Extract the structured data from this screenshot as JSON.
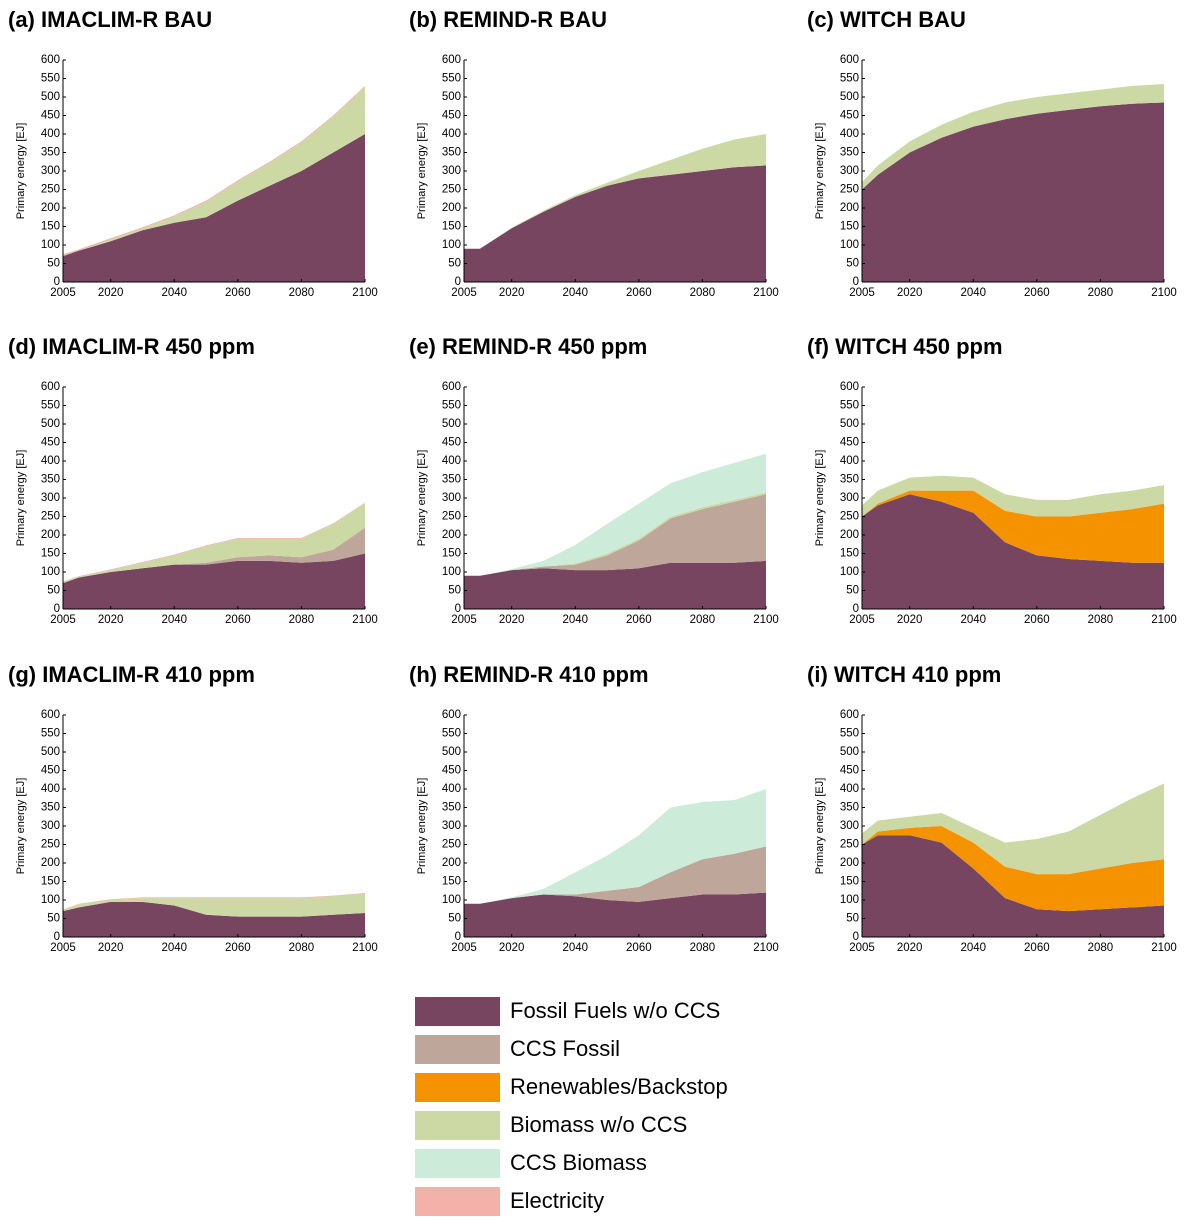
{
  "chart_data": [
    {
      "type": "stacked_area",
      "title": "(a) IMACLIM-R BAU",
      "y_label": "Primary energy [EJ]",
      "x": [
        2005,
        2010,
        2020,
        2030,
        2040,
        2050,
        2060,
        2070,
        2080,
        2090,
        2100
      ],
      "series": [
        {
          "name": "Fossil Fuels w/o CCS",
          "color": "#774560",
          "values": [
            70,
            85,
            110,
            140,
            160,
            175,
            220,
            260,
            300,
            350,
            400
          ]
        },
        {
          "name": "Biomass w/o CCS",
          "color": "#ccd9a5",
          "values": [
            2,
            0,
            5,
            5,
            17,
            42,
            52,
            62,
            77,
            97,
            127
          ]
        },
        {
          "name": "Electricity",
          "color": "#f4b1a9",
          "values": [
            3,
            3,
            3,
            3,
            3,
            3,
            3,
            3,
            3,
            3,
            3
          ]
        }
      ],
      "xlim": [
        2005,
        2100
      ],
      "xticks": [
        2005,
        2020,
        2040,
        2060,
        2080,
        2100
      ],
      "ylim": [
        0,
        600
      ],
      "yticks": [
        0,
        50,
        100,
        150,
        200,
        250,
        300,
        350,
        400,
        450,
        500,
        550,
        600
      ]
    },
    {
      "type": "stacked_area",
      "title": "(b) REMIND-R BAU",
      "y_label": "Primary energy [EJ]",
      "x": [
        2005,
        2010,
        2020,
        2030,
        2040,
        2050,
        2060,
        2070,
        2080,
        2090,
        2100
      ],
      "series": [
        {
          "name": "Fossil Fuels w/o CCS",
          "color": "#774560",
          "values": [
            90,
            90,
            145,
            190,
            230,
            260,
            280,
            290,
            300,
            310,
            315
          ]
        },
        {
          "name": "Biomass w/o CCS",
          "color": "#ccd9a5",
          "values": [
            0,
            0,
            2,
            3,
            5,
            8,
            20,
            40,
            60,
            75,
            85
          ]
        }
      ],
      "xlim": [
        2005,
        2100
      ],
      "xticks": [
        2005,
        2020,
        2040,
        2060,
        2080,
        2100
      ],
      "ylim": [
        0,
        600
      ],
      "yticks": [
        0,
        50,
        100,
        150,
        200,
        250,
        300,
        350,
        400,
        450,
        500,
        550,
        600
      ]
    },
    {
      "type": "stacked_area",
      "title": "(c) WITCH BAU",
      "y_label": "Primary energy [EJ]",
      "x": [
        2005,
        2010,
        2020,
        2030,
        2040,
        2050,
        2060,
        2070,
        2080,
        2090,
        2100
      ],
      "series": [
        {
          "name": "Fossil Fuels w/o CCS",
          "color": "#774560",
          "values": [
            250,
            290,
            350,
            390,
            420,
            440,
            455,
            465,
            475,
            482,
            485
          ]
        },
        {
          "name": "Biomass w/o CCS",
          "color": "#ccd9a5",
          "values": [
            20,
            25,
            30,
            35,
            40,
            45,
            45,
            45,
            45,
            48,
            50
          ]
        }
      ],
      "xlim": [
        2005,
        2100
      ],
      "xticks": [
        2005,
        2020,
        2040,
        2060,
        2080,
        2100
      ],
      "ylim": [
        0,
        600
      ],
      "yticks": [
        0,
        50,
        100,
        150,
        200,
        250,
        300,
        350,
        400,
        450,
        500,
        550,
        600
      ]
    },
    {
      "type": "stacked_area",
      "title": "(d) IMACLIM-R 450 ppm",
      "y_label": "Primary energy [EJ]",
      "x": [
        2005,
        2010,
        2020,
        2030,
        2040,
        2050,
        2060,
        2070,
        2080,
        2090,
        2100
      ],
      "series": [
        {
          "name": "Fossil Fuels w/o CCS",
          "color": "#774560",
          "values": [
            70,
            85,
            100,
            110,
            120,
            120,
            130,
            130,
            125,
            130,
            150
          ]
        },
        {
          "name": "CCS Fossil",
          "color": "#bfa69a",
          "values": [
            0,
            0,
            0,
            0,
            0,
            5,
            10,
            15,
            15,
            30,
            70
          ]
        },
        {
          "name": "Biomass w/o CCS",
          "color": "#ccd9a5",
          "values": [
            2,
            2,
            5,
            15,
            25,
            45,
            50,
            45,
            50,
            70,
            65
          ]
        },
        {
          "name": "Electricity",
          "color": "#f4b1a9",
          "values": [
            2,
            2,
            2,
            2,
            2,
            2,
            2,
            2,
            2,
            2,
            2
          ]
        }
      ],
      "xlim": [
        2005,
        2100
      ],
      "xticks": [
        2005,
        2020,
        2040,
        2060,
        2080,
        2100
      ],
      "ylim": [
        0,
        600
      ],
      "yticks": [
        0,
        50,
        100,
        150,
        200,
        250,
        300,
        350,
        400,
        450,
        500,
        550,
        600
      ]
    },
    {
      "type": "stacked_area",
      "title": "(e) REMIND-R 450 ppm",
      "y_label": "Primary energy [EJ]",
      "x": [
        2005,
        2010,
        2020,
        2030,
        2040,
        2050,
        2060,
        2070,
        2080,
        2090,
        2100
      ],
      "series": [
        {
          "name": "Fossil Fuels w/o CCS",
          "color": "#774560",
          "values": [
            90,
            90,
            105,
            110,
            105,
            105,
            110,
            125,
            125,
            125,
            130
          ]
        },
        {
          "name": "CCS Fossil",
          "color": "#bfa69a",
          "values": [
            0,
            0,
            0,
            5,
            15,
            40,
            75,
            120,
            145,
            165,
            180
          ]
        },
        {
          "name": "Biomass w/o CCS",
          "color": "#ccd9a5",
          "values": [
            0,
            0,
            0,
            0,
            3,
            5,
            5,
            5,
            5,
            5,
            5
          ]
        },
        {
          "name": "CCS Biomass",
          "color": "#cdebd9",
          "values": [
            0,
            0,
            3,
            15,
            50,
            80,
            95,
            90,
            95,
            100,
            105
          ]
        }
      ],
      "xlim": [
        2005,
        2100
      ],
      "xticks": [
        2005,
        2020,
        2040,
        2060,
        2080,
        2100
      ],
      "ylim": [
        0,
        600
      ],
      "yticks": [
        0,
        50,
        100,
        150,
        200,
        250,
        300,
        350,
        400,
        450,
        500,
        550,
        600
      ]
    },
    {
      "type": "stacked_area",
      "title": "(f) WITCH 450 ppm",
      "y_label": "Primary energy [EJ]",
      "x": [
        2005,
        2010,
        2020,
        2030,
        2040,
        2050,
        2060,
        2070,
        2080,
        2090,
        2100
      ],
      "series": [
        {
          "name": "Fossil Fuels w/o CCS",
          "color": "#774560",
          "values": [
            250,
            280,
            310,
            290,
            260,
            180,
            145,
            135,
            130,
            125,
            125
          ]
        },
        {
          "name": "Renewables/Backstop",
          "color": "#f59200",
          "values": [
            0,
            5,
            10,
            30,
            60,
            85,
            105,
            115,
            130,
            145,
            160
          ]
        },
        {
          "name": "Biomass w/o CCS",
          "color": "#ccd9a5",
          "values": [
            30,
            35,
            35,
            40,
            35,
            45,
            45,
            45,
            50,
            50,
            50
          ]
        }
      ],
      "xlim": [
        2005,
        2100
      ],
      "xticks": [
        2005,
        2020,
        2040,
        2060,
        2080,
        2100
      ],
      "ylim": [
        0,
        600
      ],
      "yticks": [
        0,
        50,
        100,
        150,
        200,
        250,
        300,
        350,
        400,
        450,
        500,
        550,
        600
      ]
    },
    {
      "type": "stacked_area",
      "title": "(g) IMACLIM-R 410 ppm",
      "y_label": "Primary energy [EJ]",
      "x": [
        2005,
        2010,
        2020,
        2030,
        2040,
        2050,
        2060,
        2070,
        2080,
        2090,
        2100
      ],
      "series": [
        {
          "name": "Fossil Fuels w/o CCS",
          "color": "#774560",
          "values": [
            70,
            80,
            95,
            95,
            85,
            60,
            55,
            55,
            55,
            60,
            65
          ]
        },
        {
          "name": "Biomass w/o CCS",
          "color": "#ccd9a5",
          "values": [
            2,
            8,
            5,
            10,
            20,
            45,
            50,
            50,
            50,
            50,
            52
          ]
        },
        {
          "name": "Electricity",
          "color": "#f4b1a9",
          "values": [
            2,
            2,
            2,
            2,
            2,
            2,
            2,
            2,
            2,
            2,
            2
          ]
        }
      ],
      "xlim": [
        2005,
        2100
      ],
      "xticks": [
        2005,
        2020,
        2040,
        2060,
        2080,
        2100
      ],
      "ylim": [
        0,
        600
      ],
      "yticks": [
        0,
        50,
        100,
        150,
        200,
        250,
        300,
        350,
        400,
        450,
        500,
        550,
        600
      ]
    },
    {
      "type": "stacked_area",
      "title": "(h) REMIND-R 410 ppm",
      "y_label": "Primary energy [EJ]",
      "x": [
        2005,
        2010,
        2020,
        2030,
        2040,
        2050,
        2060,
        2070,
        2080,
        2090,
        2100
      ],
      "series": [
        {
          "name": "Fossil Fuels w/o CCS",
          "color": "#774560",
          "values": [
            90,
            90,
            105,
            115,
            110,
            100,
            95,
            105,
            115,
            115,
            120
          ]
        },
        {
          "name": "CCS Fossil",
          "color": "#bfa69a",
          "values": [
            0,
            0,
            0,
            0,
            5,
            25,
            40,
            70,
            95,
            110,
            125
          ]
        },
        {
          "name": "CCS Biomass",
          "color": "#cdebd9",
          "values": [
            0,
            0,
            2,
            15,
            60,
            95,
            140,
            175,
            155,
            145,
            155
          ]
        }
      ],
      "xlim": [
        2005,
        2100
      ],
      "xticks": [
        2005,
        2020,
        2040,
        2060,
        2080,
        2100
      ],
      "ylim": [
        0,
        600
      ],
      "yticks": [
        0,
        50,
        100,
        150,
        200,
        250,
        300,
        350,
        400,
        450,
        500,
        550,
        600
      ]
    },
    {
      "type": "stacked_area",
      "title": "(i) WITCH 410 ppm",
      "y_label": "Primary energy [EJ]",
      "x": [
        2005,
        2010,
        2020,
        2030,
        2040,
        2050,
        2060,
        2070,
        2080,
        2090,
        2100
      ],
      "series": [
        {
          "name": "Fossil Fuels w/o CCS",
          "color": "#774560",
          "values": [
            250,
            275,
            275,
            255,
            185,
            105,
            75,
            70,
            75,
            80,
            85
          ]
        },
        {
          "name": "Renewables/Backstop",
          "color": "#f59200",
          "values": [
            0,
            10,
            20,
            45,
            70,
            85,
            95,
            100,
            110,
            120,
            125
          ]
        },
        {
          "name": "Biomass w/o CCS",
          "color": "#ccd9a5",
          "values": [
            30,
            30,
            30,
            35,
            40,
            65,
            95,
            115,
            145,
            175,
            205
          ]
        }
      ],
      "xlim": [
        2005,
        2100
      ],
      "xticks": [
        2005,
        2020,
        2040,
        2060,
        2080,
        2100
      ],
      "ylim": [
        0,
        600
      ],
      "yticks": [
        0,
        50,
        100,
        150,
        200,
        250,
        300,
        350,
        400,
        450,
        500,
        550,
        600
      ]
    }
  ],
  "legend": {
    "entries": [
      {
        "name": "Fossil Fuels w/o CCS",
        "color": "#774560"
      },
      {
        "name": "CCS Fossil",
        "color": "#bfa69a"
      },
      {
        "name": "Renewables/Backstop",
        "color": "#f59200"
      },
      {
        "name": "Biomass w/o CCS",
        "color": "#ccd9a5"
      },
      {
        "name": "CCS Biomass",
        "color": "#cdebd9"
      },
      {
        "name": "Electricity",
        "color": "#f4b1a9"
      }
    ]
  }
}
